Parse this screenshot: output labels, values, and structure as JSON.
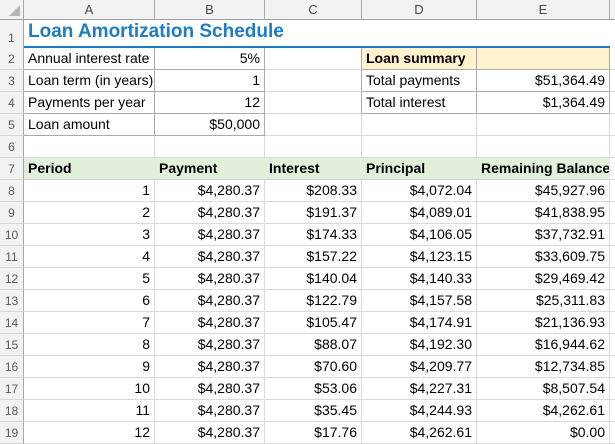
{
  "grid": {
    "columns": [
      "A",
      "B",
      "C",
      "D",
      "E"
    ],
    "row_numbers": [
      "1",
      "2",
      "3",
      "4",
      "5",
      "6",
      "7",
      "8",
      "9",
      "10",
      "11",
      "12",
      "13",
      "14",
      "15",
      "16",
      "17",
      "18",
      "19"
    ]
  },
  "title": {
    "text": "Loan Amortization Schedule"
  },
  "inputs": {
    "rows": [
      {
        "label": "Annual interest rate",
        "value": "5%"
      },
      {
        "label": "Loan term (in years)",
        "value": "1"
      },
      {
        "label": "Payments per year",
        "value": "12"
      },
      {
        "label": "Loan amount",
        "value": "$50,000"
      }
    ]
  },
  "summary": {
    "title": "Loan summary",
    "rows": [
      {
        "label": "Total payments",
        "value": "$51,364.49"
      },
      {
        "label": "Total interest",
        "value": "$1,364.49"
      }
    ]
  },
  "schedule": {
    "headers": [
      "Period",
      "Payment",
      "Interest",
      "Principal",
      "Remaining Balance"
    ],
    "rows": [
      [
        "1",
        "$4,280.37",
        "$208.33",
        "$4,072.04",
        "$45,927.96"
      ],
      [
        "2",
        "$4,280.37",
        "$191.37",
        "$4,089.01",
        "$41,838.95"
      ],
      [
        "3",
        "$4,280.37",
        "$174.33",
        "$4,106.05",
        "$37,732.91"
      ],
      [
        "4",
        "$4,280.37",
        "$157.22",
        "$4,123.15",
        "$33,609.75"
      ],
      [
        "5",
        "$4,280.37",
        "$140.04",
        "$4,140.33",
        "$29,469.42"
      ],
      [
        "6",
        "$4,280.37",
        "$122.79",
        "$4,157.58",
        "$25,311.83"
      ],
      [
        "7",
        "$4,280.37",
        "$105.47",
        "$4,174.91",
        "$21,136.93"
      ],
      [
        "8",
        "$4,280.37",
        "$88.07",
        "$4,192.30",
        "$16,944.62"
      ],
      [
        "9",
        "$4,280.37",
        "$70.60",
        "$4,209.77",
        "$12,734.85"
      ],
      [
        "10",
        "$4,280.37",
        "$53.06",
        "$4,227.31",
        "$8,507.54"
      ],
      [
        "11",
        "$4,280.37",
        "$35.45",
        "$4,244.93",
        "$4,262.61"
      ],
      [
        "12",
        "$4,280.37",
        "$17.76",
        "$4,262.61",
        "$0.00"
      ]
    ]
  },
  "colors": {
    "title_blue": "#1F7BC3",
    "header_green": "#E2EFDA",
    "summary_yellow": "#FFF2CC"
  }
}
